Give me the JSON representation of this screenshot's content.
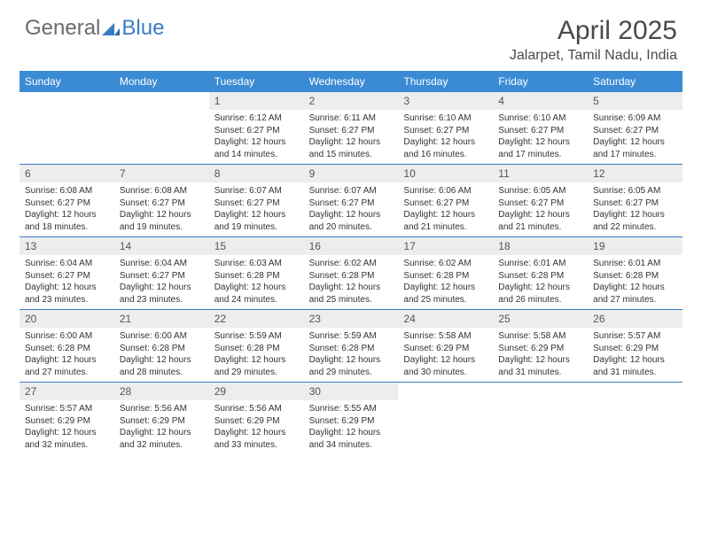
{
  "logo": {
    "text1": "General",
    "text2": "Blue"
  },
  "title": "April 2025",
  "location": "Jalarpet, Tamil Nadu, India",
  "colors": {
    "header_bar": "#3b8bd4",
    "daynum_bg": "#eceded",
    "week_border": "#3b7cc4",
    "logo_gray": "#6a6a6a",
    "logo_blue": "#3b7cc4"
  },
  "weekdays": [
    "Sunday",
    "Monday",
    "Tuesday",
    "Wednesday",
    "Thursday",
    "Friday",
    "Saturday"
  ],
  "weeks": [
    [
      null,
      null,
      {
        "n": "1",
        "sr": "6:12 AM",
        "ss": "6:27 PM",
        "dl": "12 hours and 14 minutes."
      },
      {
        "n": "2",
        "sr": "6:11 AM",
        "ss": "6:27 PM",
        "dl": "12 hours and 15 minutes."
      },
      {
        "n": "3",
        "sr": "6:10 AM",
        "ss": "6:27 PM",
        "dl": "12 hours and 16 minutes."
      },
      {
        "n": "4",
        "sr": "6:10 AM",
        "ss": "6:27 PM",
        "dl": "12 hours and 17 minutes."
      },
      {
        "n": "5",
        "sr": "6:09 AM",
        "ss": "6:27 PM",
        "dl": "12 hours and 17 minutes."
      }
    ],
    [
      {
        "n": "6",
        "sr": "6:08 AM",
        "ss": "6:27 PM",
        "dl": "12 hours and 18 minutes."
      },
      {
        "n": "7",
        "sr": "6:08 AM",
        "ss": "6:27 PM",
        "dl": "12 hours and 19 minutes."
      },
      {
        "n": "8",
        "sr": "6:07 AM",
        "ss": "6:27 PM",
        "dl": "12 hours and 19 minutes."
      },
      {
        "n": "9",
        "sr": "6:07 AM",
        "ss": "6:27 PM",
        "dl": "12 hours and 20 minutes."
      },
      {
        "n": "10",
        "sr": "6:06 AM",
        "ss": "6:27 PM",
        "dl": "12 hours and 21 minutes."
      },
      {
        "n": "11",
        "sr": "6:05 AM",
        "ss": "6:27 PM",
        "dl": "12 hours and 21 minutes."
      },
      {
        "n": "12",
        "sr": "6:05 AM",
        "ss": "6:27 PM",
        "dl": "12 hours and 22 minutes."
      }
    ],
    [
      {
        "n": "13",
        "sr": "6:04 AM",
        "ss": "6:27 PM",
        "dl": "12 hours and 23 minutes."
      },
      {
        "n": "14",
        "sr": "6:04 AM",
        "ss": "6:27 PM",
        "dl": "12 hours and 23 minutes."
      },
      {
        "n": "15",
        "sr": "6:03 AM",
        "ss": "6:28 PM",
        "dl": "12 hours and 24 minutes."
      },
      {
        "n": "16",
        "sr": "6:02 AM",
        "ss": "6:28 PM",
        "dl": "12 hours and 25 minutes."
      },
      {
        "n": "17",
        "sr": "6:02 AM",
        "ss": "6:28 PM",
        "dl": "12 hours and 25 minutes."
      },
      {
        "n": "18",
        "sr": "6:01 AM",
        "ss": "6:28 PM",
        "dl": "12 hours and 26 minutes."
      },
      {
        "n": "19",
        "sr": "6:01 AM",
        "ss": "6:28 PM",
        "dl": "12 hours and 27 minutes."
      }
    ],
    [
      {
        "n": "20",
        "sr": "6:00 AM",
        "ss": "6:28 PM",
        "dl": "12 hours and 27 minutes."
      },
      {
        "n": "21",
        "sr": "6:00 AM",
        "ss": "6:28 PM",
        "dl": "12 hours and 28 minutes."
      },
      {
        "n": "22",
        "sr": "5:59 AM",
        "ss": "6:28 PM",
        "dl": "12 hours and 29 minutes."
      },
      {
        "n": "23",
        "sr": "5:59 AM",
        "ss": "6:28 PM",
        "dl": "12 hours and 29 minutes."
      },
      {
        "n": "24",
        "sr": "5:58 AM",
        "ss": "6:29 PM",
        "dl": "12 hours and 30 minutes."
      },
      {
        "n": "25",
        "sr": "5:58 AM",
        "ss": "6:29 PM",
        "dl": "12 hours and 31 minutes."
      },
      {
        "n": "26",
        "sr": "5:57 AM",
        "ss": "6:29 PM",
        "dl": "12 hours and 31 minutes."
      }
    ],
    [
      {
        "n": "27",
        "sr": "5:57 AM",
        "ss": "6:29 PM",
        "dl": "12 hours and 32 minutes."
      },
      {
        "n": "28",
        "sr": "5:56 AM",
        "ss": "6:29 PM",
        "dl": "12 hours and 32 minutes."
      },
      {
        "n": "29",
        "sr": "5:56 AM",
        "ss": "6:29 PM",
        "dl": "12 hours and 33 minutes."
      },
      {
        "n": "30",
        "sr": "5:55 AM",
        "ss": "6:29 PM",
        "dl": "12 hours and 34 minutes."
      },
      null,
      null,
      null
    ]
  ],
  "labels": {
    "sunrise": "Sunrise:",
    "sunset": "Sunset:",
    "daylight": "Daylight:"
  }
}
